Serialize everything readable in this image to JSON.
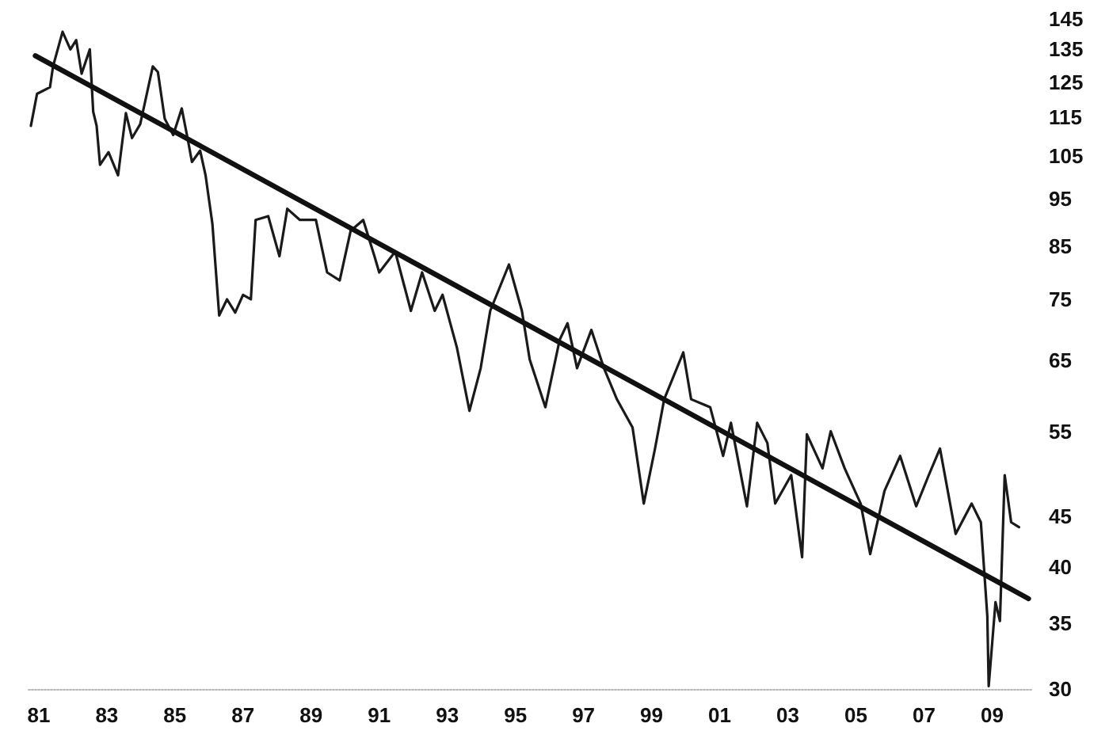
{
  "chart_data": {
    "type": "line",
    "series": [
      {
        "color": "#1a1a1a",
        "line_style": "solid",
        "x": [
          1980.77,
          1980.95,
          1981.33,
          1981.42,
          1981.7,
          1981.93,
          1982.1,
          1982.26,
          1982.5,
          1982.6,
          1982.7,
          1982.8,
          1983.05,
          1983.33,
          1983.56,
          1983.74,
          1983.98,
          1984.1,
          1984.35,
          1984.5,
          1984.7,
          1984.95,
          1985.2,
          1985.37,
          1985.5,
          1985.74,
          1985.9,
          1986.1,
          1986.3,
          1986.53,
          1986.77,
          1987.0,
          1987.23,
          1987.37,
          1987.74,
          1988.07,
          1988.3,
          1988.67,
          1989.14,
          1989.47,
          1989.84,
          1990.16,
          1990.53,
          1990.86,
          1991.0,
          1991.47,
          1991.93,
          1992.26,
          1992.63,
          1992.86,
          1993.28,
          1993.65,
          1993.98,
          1994.26,
          1994.81,
          1995.19,
          1995.42,
          1995.88,
          1996.3,
          1996.53,
          1996.81,
          1997.23,
          1997.6,
          1997.98,
          1998.44,
          1998.77,
          1999.1,
          1999.37,
          1999.93,
          2000.16,
          2000.72,
          2001.1,
          2001.33,
          2001.8,
          2002.1,
          2002.4,
          2002.63,
          2003.1,
          2003.42,
          2003.56,
          2004.02,
          2004.26,
          2004.67,
          2005.14,
          2005.42,
          2005.84,
          2006.3,
          2006.77,
          2007.14,
          2007.47,
          2007.93,
          2008.4,
          2008.67,
          2008.86,
          2008.9,
          2009.1,
          2009.23,
          2009.37,
          2009.56,
          2009.79
        ],
        "values": [
          112.8,
          121.6,
          123.5,
          129.7,
          140.7,
          135,
          138,
          127.5,
          135,
          116.6,
          112.8,
          102.9,
          106,
          100.4,
          116.2,
          109.6,
          113.2,
          118.3,
          129.7,
          128,
          114.7,
          110.4,
          117.5,
          109.6,
          103.6,
          106.4,
          100.4,
          89.6,
          72.2,
          75,
          72.7,
          75.8,
          75,
          90.4,
          91.2,
          83,
          92.8,
          90.4,
          90.4,
          79.9,
          78.4,
          88.1,
          90.4,
          83,
          79.9,
          83.9,
          73,
          79.9,
          73,
          75.8,
          67,
          57.7,
          63.8,
          73,
          81.4,
          73,
          65.1,
          58.2,
          68.2,
          70.9,
          63.8,
          69.8,
          63.8,
          59.3,
          55.5,
          46.4,
          52.8,
          59.3,
          66.2,
          59.3,
          58.2,
          51.9,
          56.1,
          46.1,
          56.1,
          53.5,
          46.4,
          49.6,
          40.9,
          54.6,
          50.4,
          55,
          50.4,
          46.4,
          41.2,
          47.8,
          51.9,
          46.1,
          49.6,
          52.8,
          43.2,
          46.4,
          44.4,
          35.6,
          30.2,
          36.8,
          35.2,
          49.6,
          44.4,
          43.9
        ]
      },
      {
        "color": "#111111",
        "line_style": "solid",
        "x": [
          1980.9,
          2010.07
        ],
        "values": [
          133,
          37.1
        ]
      }
    ],
    "xlim": [
      1980.7,
      2010.2
    ],
    "xticks": [
      {
        "value": 1981,
        "label": "81"
      },
      {
        "value": 1983,
        "label": "83"
      },
      {
        "value": 1985,
        "label": "85"
      },
      {
        "value": 1987,
        "label": "87"
      },
      {
        "value": 1989,
        "label": "89"
      },
      {
        "value": 1991,
        "label": "91"
      },
      {
        "value": 1993,
        "label": "93"
      },
      {
        "value": 1995,
        "label": "95"
      },
      {
        "value": 1997,
        "label": "97"
      },
      {
        "value": 1999,
        "label": "99"
      },
      {
        "value": 2001,
        "label": "01"
      },
      {
        "value": 2003,
        "label": "03"
      },
      {
        "value": 2005,
        "label": "05"
      },
      {
        "value": 2007,
        "label": "07"
      },
      {
        "value": 2009,
        "label": "09"
      }
    ],
    "ylim": [
      30,
      145
    ],
    "yticks": [
      30,
      35,
      40,
      45,
      55,
      65,
      75,
      85,
      95,
      105,
      115,
      125,
      135,
      145
    ],
    "log": "y",
    "grid": false,
    "marker": "none"
  }
}
